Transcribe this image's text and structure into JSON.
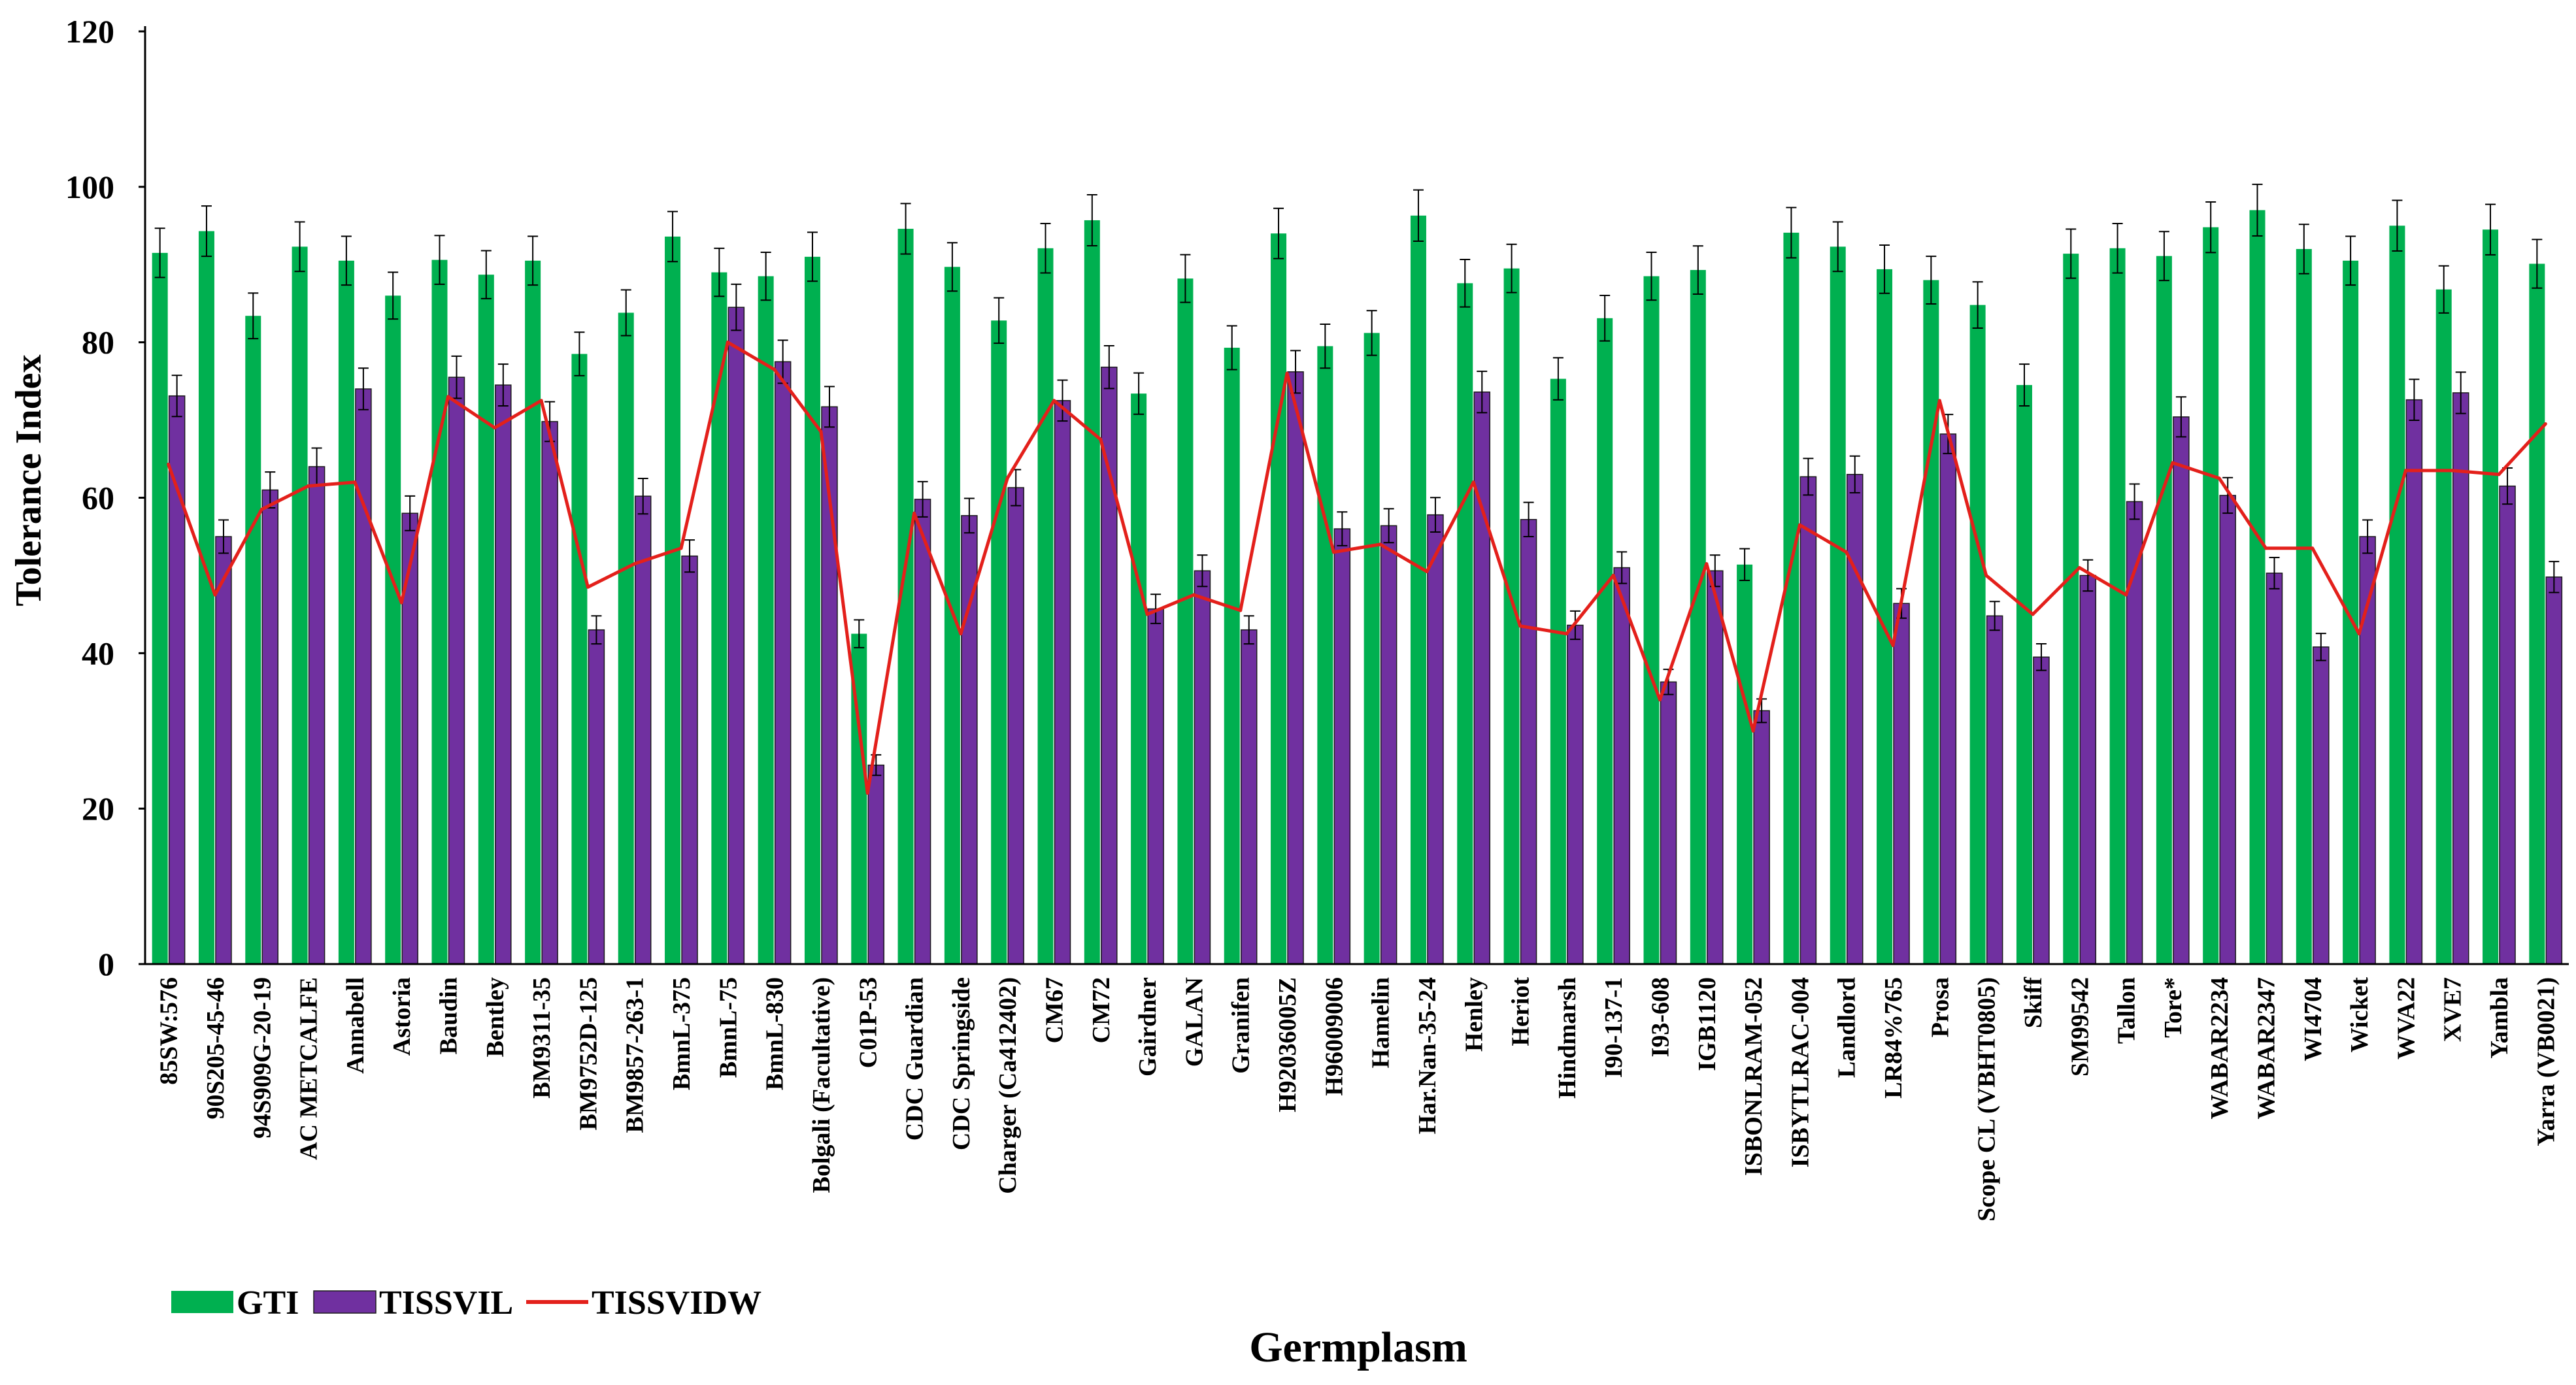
{
  "chart_data": {
    "type": "bar",
    "xlabel": "Germplasm",
    "ylabel": "Tolerance Index",
    "ylim": [
      0,
      120
    ],
    "yticks": [
      0,
      20,
      40,
      60,
      80,
      100,
      120
    ],
    "grid": false,
    "legend_position": "bottom-left",
    "colors": {
      "GTI": "#00b050",
      "TISSVIL": "#7030a0",
      "TISSVIDW": "#e3201b"
    },
    "categories": [
      "85SW:576",
      "90S205-45-46",
      "94S909G-20-19",
      "AC METCALFE",
      "Annabell",
      "Astoria",
      "Baudin",
      "Bentley",
      "BM9311-35",
      "BM9752D-125",
      "BM9857-263-1",
      "BmnL-375",
      "BmnL-75",
      "BmnL-830",
      "Bolgali (Facultative)",
      "C01P-53",
      "CDC Guardian",
      "CDC Springside",
      "Charger (Ca412402)",
      "CM67",
      "CM72",
      "Gairdner",
      "GALAN",
      "Granifen",
      "H92036005Z",
      "H96009006",
      "Hamelin",
      "Har.Nan-35-24",
      "Henley",
      "Heriot",
      "Hindmarsh",
      "I90-137-1",
      "I93-608",
      "IGB1120",
      "ISBONLRAM-052",
      "ISBYTLRAC-004",
      "Landlord",
      "LR84%765",
      "Prosa",
      "Scope CL (VBHT0805)",
      "Skiff",
      "SM99542",
      "Tallon",
      "Tore*",
      "WABAR2234",
      "WABAR2347",
      "WI4704",
      "Wicket",
      "WVA22",
      "XVE7",
      "Yambla",
      "Yarra (VB0021)"
    ],
    "series": [
      {
        "name": "GTI",
        "type": "bar",
        "values": [
          91.5,
          94.3,
          83.4,
          92.3,
          90.5,
          86,
          90.6,
          88.7,
          90.5,
          78.5,
          83.8,
          93.6,
          89,
          88.5,
          91,
          42.5,
          94.6,
          89.7,
          82.8,
          92.1,
          95.7,
          73.4,
          88.2,
          79.3,
          94,
          79.5,
          81.2,
          96.3,
          87.6,
          89.5,
          75.3,
          83.1,
          88.5,
          89.3,
          51.4,
          94.1,
          92.3,
          89.4,
          88,
          84.8,
          74.5,
          91.4,
          92.1,
          91.1,
          94.8,
          97,
          92,
          90.5,
          95,
          86.8,
          94.5,
          90.1
        ]
      },
      {
        "name": "TISSVIL",
        "type": "bar",
        "values": [
          73.1,
          55,
          61,
          64,
          74,
          58,
          75.5,
          74.5,
          69.8,
          43,
          60.2,
          52.5,
          84.5,
          77.5,
          71.7,
          25.6,
          59.8,
          57.7,
          61.3,
          72.5,
          76.8,
          45.7,
          50.6,
          43,
          76.2,
          56,
          56.4,
          57.8,
          73.6,
          57.2,
          43.6,
          51,
          36.3,
          50.6,
          32.6,
          62.7,
          63,
          46.4,
          68.2,
          44.8,
          39.5,
          50,
          59.5,
          70.4,
          60.3,
          50.3,
          40.8,
          55,
          72.6,
          73.5,
          61.5,
          49.8
        ]
      },
      {
        "name": "TISSVIDW",
        "type": "line",
        "values": [
          64.3,
          47.5,
          58.5,
          61.5,
          62,
          46.5,
          73,
          69,
          72.5,
          48.5,
          51.5,
          53.5,
          80,
          76.5,
          68.5,
          22,
          58,
          42.5,
          62.5,
          72.5,
          67.5,
          45,
          47.5,
          45.5,
          76,
          53,
          54,
          50.5,
          62,
          43.5,
          42.5,
          50,
          34,
          51.5,
          30,
          56.5,
          53,
          41,
          72.5,
          50,
          45,
          51,
          47.5,
          64.5,
          62.5,
          53.5,
          53.5,
          42.5,
          63.5,
          63.5,
          63,
          69.5
        ]
      }
    ]
  }
}
